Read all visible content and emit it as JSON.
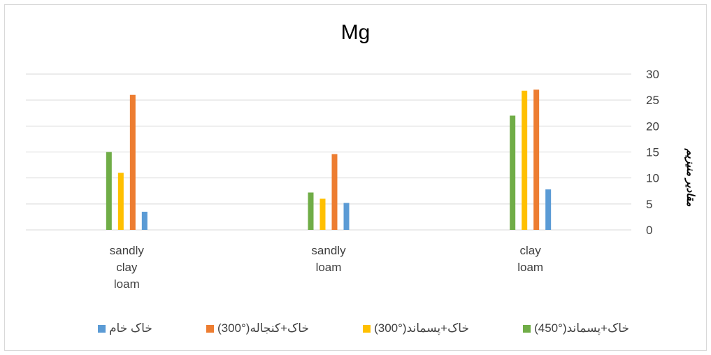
{
  "chart_data": {
    "type": "bar",
    "title": "Mg",
    "ylabel": "مقادیر منیزیم",
    "ylim": [
      0,
      30
    ],
    "yticks": [
      0,
      5,
      10,
      15,
      20,
      25,
      30
    ],
    "y_axis_side": "right",
    "x_direction": "right-to-left",
    "grid": true,
    "legend_position": "bottom",
    "categories": [
      "clay\nloam",
      "sandly\nloam",
      "sandly\nclay\nloam"
    ],
    "series": [
      {
        "name": "خاک+پسماند(°450)",
        "color": "#70AD47",
        "values": [
          22,
          7.2,
          15
        ]
      },
      {
        "name": "خاک+پسماند(°300)",
        "color": "#FFC000",
        "values": [
          26.8,
          6,
          11
        ]
      },
      {
        "name": "خاک+کنجاله(°300)",
        "color": "#ED7D31",
        "values": [
          27,
          14.6,
          26
        ]
      },
      {
        "name": "خاک خام",
        "color": "#5B9BD5",
        "values": [
          7.8,
          5.2,
          3.5
        ]
      }
    ]
  }
}
